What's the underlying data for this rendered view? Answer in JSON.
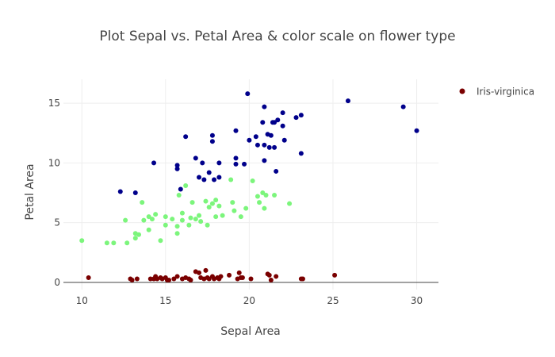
{
  "chart_data": {
    "type": "scatter",
    "title": "Plot Sepal vs. Petal Area & color scale on flower type",
    "xlabel": "Sepal Area",
    "ylabel": "Petal Area",
    "xlim": [
      8.9,
      31.3
    ],
    "ylim": [
      -0.6,
      17
    ],
    "xticks": [
      10,
      15,
      20,
      25,
      30
    ],
    "yticks": [
      0,
      5,
      10,
      15
    ],
    "grid": true,
    "legend_position": "top-right",
    "legend": [
      {
        "label": "Iris-virginica",
        "color": "#7a0000"
      }
    ],
    "series": [
      {
        "color": "#00008b",
        "points": [
          [
            12.3,
            7.6
          ],
          [
            13.2,
            7.5
          ],
          [
            14.3,
            10.0
          ],
          [
            15.7,
            9.8
          ],
          [
            15.7,
            9.5
          ],
          [
            15.9,
            7.8
          ],
          [
            16.2,
            12.2
          ],
          [
            16.8,
            10.4
          ],
          [
            17.0,
            8.8
          ],
          [
            17.2,
            10.0
          ],
          [
            17.3,
            8.6
          ],
          [
            17.6,
            9.2
          ],
          [
            17.8,
            12.3
          ],
          [
            17.8,
            11.8
          ],
          [
            17.9,
            8.6
          ],
          [
            18.2,
            8.8
          ],
          [
            18.2,
            10.0
          ],
          [
            19.2,
            12.7
          ],
          [
            19.2,
            10.4
          ],
          [
            19.2,
            9.9
          ],
          [
            19.7,
            9.9
          ],
          [
            19.9,
            15.8
          ],
          [
            20.0,
            11.9
          ],
          [
            20.4,
            12.2
          ],
          [
            20.5,
            11.5
          ],
          [
            20.8,
            13.4
          ],
          [
            20.9,
            11.5
          ],
          [
            20.9,
            14.7
          ],
          [
            20.9,
            10.2
          ],
          [
            21.1,
            12.4
          ],
          [
            21.2,
            11.3
          ],
          [
            21.3,
            12.3
          ],
          [
            21.4,
            13.4
          ],
          [
            21.5,
            11.3
          ],
          [
            21.5,
            13.4
          ],
          [
            21.6,
            9.3
          ],
          [
            21.7,
            13.6
          ],
          [
            22.0,
            14.2
          ],
          [
            22.0,
            13.1
          ],
          [
            22.1,
            11.9
          ],
          [
            22.8,
            13.8
          ],
          [
            23.1,
            14.0
          ],
          [
            23.1,
            10.8
          ],
          [
            25.9,
            15.2
          ],
          [
            29.2,
            14.7
          ],
          [
            30.0,
            12.7
          ]
        ]
      },
      {
        "color": "#7cf57c",
        "points": [
          [
            10.0,
            3.5
          ],
          [
            11.5,
            3.3
          ],
          [
            11.9,
            3.3
          ],
          [
            12.6,
            5.2
          ],
          [
            12.7,
            3.3
          ],
          [
            13.2,
            4.1
          ],
          [
            13.2,
            3.7
          ],
          [
            13.4,
            4.0
          ],
          [
            13.6,
            6.7
          ],
          [
            13.7,
            5.2
          ],
          [
            14.0,
            4.4
          ],
          [
            14.0,
            5.5
          ],
          [
            14.2,
            5.3
          ],
          [
            14.4,
            5.7
          ],
          [
            14.7,
            3.5
          ],
          [
            15.0,
            5.5
          ],
          [
            15.0,
            4.8
          ],
          [
            15.4,
            5.3
          ],
          [
            15.7,
            4.1
          ],
          [
            15.7,
            4.7
          ],
          [
            15.8,
            7.3
          ],
          [
            16.0,
            5.2
          ],
          [
            16.0,
            5.8
          ],
          [
            16.2,
            8.1
          ],
          [
            16.4,
            4.8
          ],
          [
            16.5,
            5.4
          ],
          [
            16.6,
            6.7
          ],
          [
            16.8,
            5.3
          ],
          [
            17.0,
            5.6
          ],
          [
            17.1,
            5.1
          ],
          [
            17.4,
            6.8
          ],
          [
            17.5,
            4.8
          ],
          [
            17.6,
            6.3
          ],
          [
            17.8,
            6.6
          ],
          [
            18.0,
            6.9
          ],
          [
            18.0,
            5.5
          ],
          [
            18.2,
            6.4
          ],
          [
            18.4,
            5.6
          ],
          [
            18.9,
            8.6
          ],
          [
            19.0,
            6.7
          ],
          [
            19.1,
            6.0
          ],
          [
            19.5,
            5.5
          ],
          [
            19.8,
            6.2
          ],
          [
            20.2,
            8.5
          ],
          [
            20.5,
            7.2
          ],
          [
            20.6,
            6.7
          ],
          [
            20.8,
            7.5
          ],
          [
            20.9,
            6.2
          ],
          [
            21.0,
            7.3
          ],
          [
            21.5,
            7.3
          ],
          [
            22.4,
            6.6
          ]
        ]
      },
      {
        "color": "#7a0000",
        "points": [
          [
            10.4,
            0.4
          ],
          [
            12.9,
            0.3
          ],
          [
            13.0,
            0.2
          ],
          [
            13.3,
            0.3
          ],
          [
            14.1,
            0.3
          ],
          [
            14.3,
            0.3
          ],
          [
            14.4,
            0.5
          ],
          [
            14.5,
            0.3
          ],
          [
            14.7,
            0.4
          ],
          [
            14.8,
            0.3
          ],
          [
            15.0,
            0.4
          ],
          [
            15.1,
            0.2
          ],
          [
            15.2,
            0.2
          ],
          [
            15.5,
            0.3
          ],
          [
            15.7,
            0.5
          ],
          [
            16.0,
            0.3
          ],
          [
            16.2,
            0.4
          ],
          [
            16.4,
            0.3
          ],
          [
            16.5,
            0.2
          ],
          [
            16.8,
            0.9
          ],
          [
            17.0,
            0.8
          ],
          [
            17.1,
            0.4
          ],
          [
            17.3,
            0.3
          ],
          [
            17.4,
            1.0
          ],
          [
            17.5,
            0.4
          ],
          [
            17.6,
            0.3
          ],
          [
            17.8,
            0.5
          ],
          [
            17.9,
            0.3
          ],
          [
            18.1,
            0.4
          ],
          [
            18.2,
            0.3
          ],
          [
            18.3,
            0.5
          ],
          [
            18.8,
            0.6
          ],
          [
            19.3,
            0.3
          ],
          [
            19.4,
            0.8
          ],
          [
            19.5,
            0.4
          ],
          [
            19.6,
            0.4
          ],
          [
            20.1,
            0.3
          ],
          [
            21.1,
            0.7
          ],
          [
            21.2,
            0.6
          ],
          [
            21.3,
            0.2
          ],
          [
            21.6,
            0.5
          ],
          [
            23.1,
            0.3
          ],
          [
            23.2,
            0.3
          ],
          [
            25.1,
            0.6
          ]
        ]
      }
    ]
  }
}
